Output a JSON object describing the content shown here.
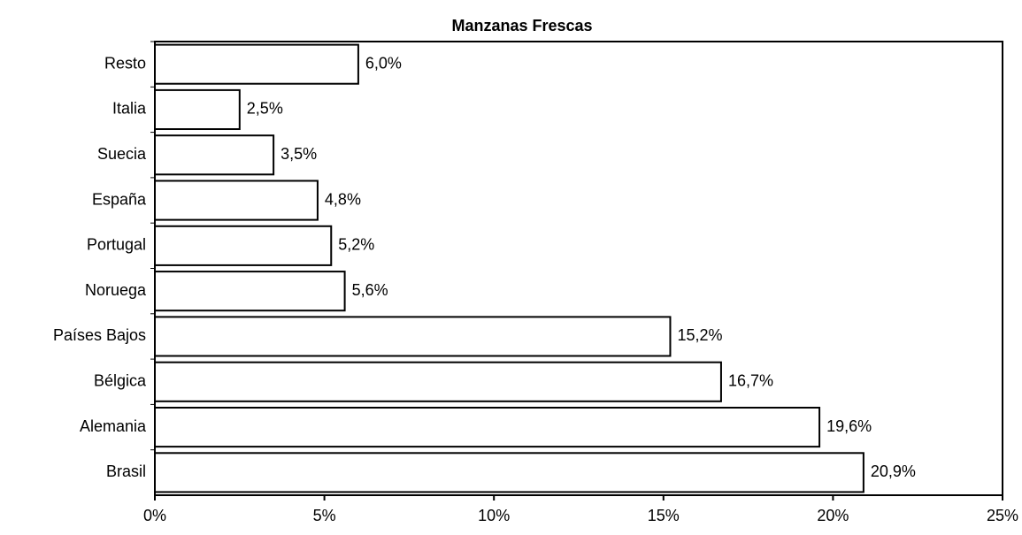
{
  "chart_data": {
    "type": "bar",
    "orientation": "horizontal",
    "title": "Manzanas Frescas",
    "categories": [
      "Resto",
      "Italia",
      "Suecia",
      "España",
      "Portugal",
      "Noruega",
      "Países Bajos",
      "Bélgica",
      "Alemania",
      "Brasil"
    ],
    "values": [
      6.0,
      2.5,
      3.5,
      4.8,
      5.2,
      5.6,
      15.2,
      16.7,
      19.6,
      20.9
    ],
    "value_labels": [
      "6,0%",
      "2,5%",
      "3,5%",
      "4,8%",
      "5,2%",
      "5,6%",
      "15,2%",
      "16,7%",
      "19,6%",
      "20,9%"
    ],
    "color": "#ffffff",
    "xlim": [
      0,
      25
    ],
    "xticks": [
      {
        "value": 0,
        "label": "0%"
      },
      {
        "value": 5,
        "label": "5%"
      },
      {
        "value": 10,
        "label": "10%"
      },
      {
        "value": 15,
        "label": "15%"
      },
      {
        "value": 20,
        "label": "20%"
      },
      {
        "value": 25,
        "label": "25%"
      }
    ]
  }
}
